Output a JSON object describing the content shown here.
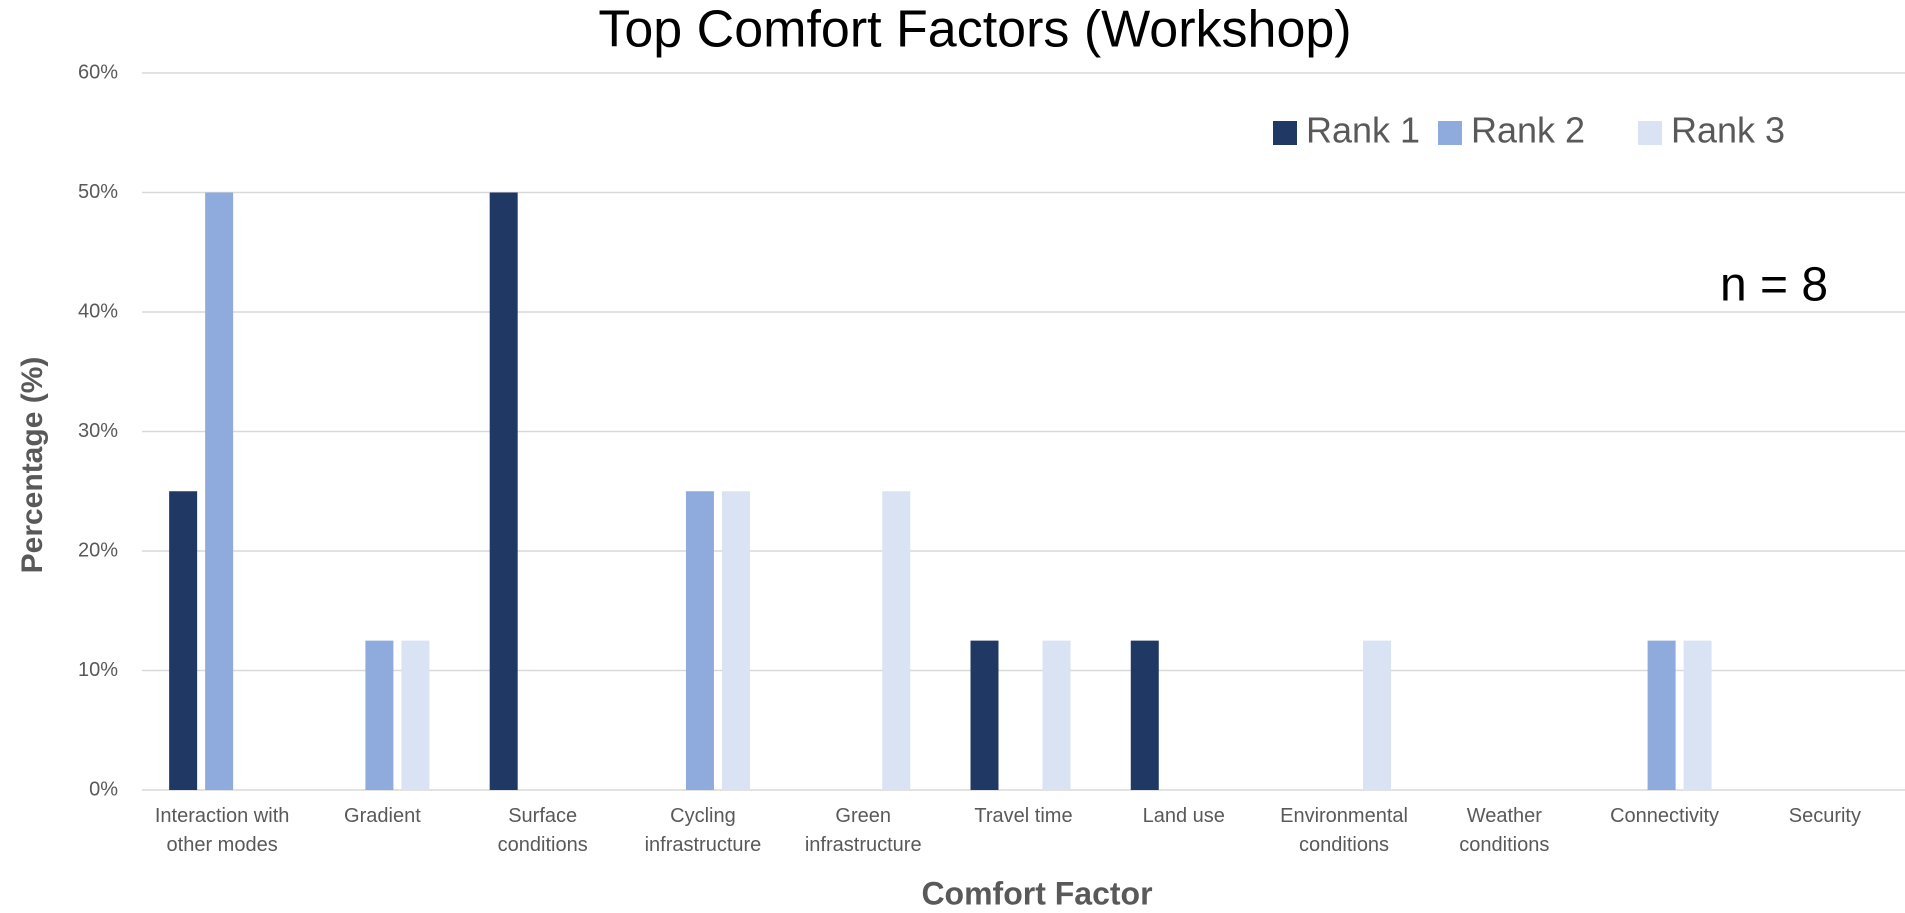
{
  "chart_data": {
    "type": "bar",
    "title": "Top Comfort Factors (Workshop)",
    "annotation": "n = 8",
    "x_label": "Comfort Factor",
    "y_label": "Percentage (%)",
    "categories": [
      "Interaction with other modes",
      "Gradient",
      "Surface conditions",
      "Cycling infrastructure",
      "Green infrastructure",
      "Travel time",
      "Land use",
      "Environmental conditions",
      "Weather conditions",
      "Connectivity",
      "Security"
    ],
    "series": [
      {
        "name": "Rank 1",
        "color": "#1f3864",
        "values": [
          25,
          0,
          50,
          0,
          0,
          12.5,
          12.5,
          0,
          0,
          0,
          0
        ]
      },
      {
        "name": "Rank 2",
        "color": "#8faadc",
        "values": [
          50,
          12.5,
          0,
          25,
          0,
          0,
          0,
          0,
          0,
          12.5,
          0
        ]
      },
      {
        "name": "Rank 3",
        "color": "#dae3f3",
        "values": [
          0,
          12.5,
          0,
          25,
          25,
          12.5,
          0,
          12.5,
          0,
          12.5,
          0
        ]
      }
    ],
    "ylim": [
      0,
      60
    ],
    "yticks": [
      {
        "value": 0,
        "label": "0%"
      },
      {
        "value": 10,
        "label": "10%"
      },
      {
        "value": 20,
        "label": "20%"
      },
      {
        "value": 30,
        "label": "30%"
      },
      {
        "value": 40,
        "label": "40%"
      },
      {
        "value": 50,
        "label": "50%"
      },
      {
        "value": 60,
        "label": "60%"
      }
    ],
    "grid": true,
    "legend": "upper right"
  }
}
